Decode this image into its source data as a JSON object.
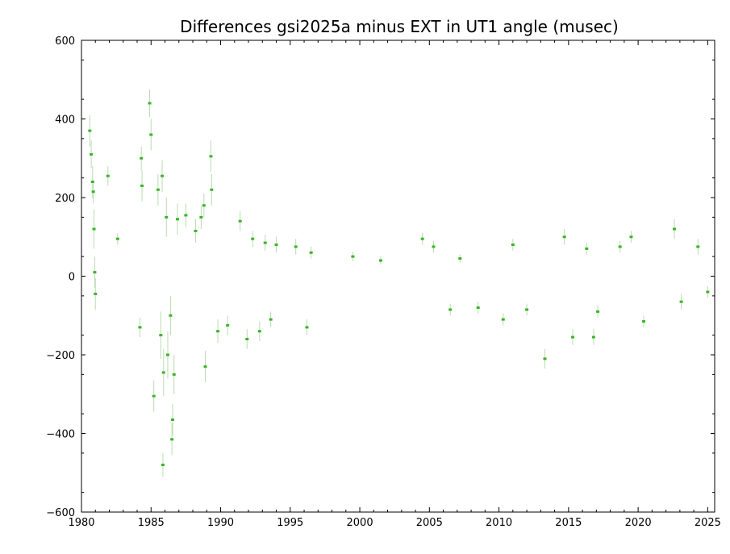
{
  "chart_data": {
    "type": "scatter",
    "title": "Differences gsi2025a minus EXT in UT1 angle    (musec)",
    "xlabel": "",
    "ylabel": "",
    "xlim": [
      1980,
      2025.5
    ],
    "ylim": [
      -600,
      600
    ],
    "x_ticks": [
      1980,
      1985,
      1990,
      1995,
      2000,
      2005,
      2010,
      2015,
      2020,
      2025
    ],
    "x_tick_labels": [
      "1980",
      "1985",
      "1990",
      "1995",
      "2000",
      "2005",
      "2010",
      "2015",
      "2020",
      "2025"
    ],
    "y_ticks": [
      -600,
      -400,
      -200,
      0,
      200,
      400,
      600
    ],
    "y_tick_labels": [
      "−600",
      "−400",
      "−200",
      "0",
      "200",
      "400",
      "600"
    ],
    "grid": false,
    "legend": "none",
    "series": [
      {
        "marker_color": "#3cb32a",
        "error_color": "#b9dcb1",
        "points": [
          {
            "x": 1980.6,
            "y": 370,
            "err": 40
          },
          {
            "x": 1980.7,
            "y": 310,
            "err": 35
          },
          {
            "x": 1980.8,
            "y": 240,
            "err": 40
          },
          {
            "x": 1980.85,
            "y": 215,
            "err": 30
          },
          {
            "x": 1980.9,
            "y": 120,
            "err": 50
          },
          {
            "x": 1980.95,
            "y": 10,
            "err": 40
          },
          {
            "x": 1981.0,
            "y": -45,
            "err": 40
          },
          {
            "x": 1981.9,
            "y": 255,
            "err": 25
          },
          {
            "x": 1982.6,
            "y": 95,
            "err": 15
          },
          {
            "x": 1984.2,
            "y": -130,
            "err": 25
          },
          {
            "x": 1984.3,
            "y": 300,
            "err": 30
          },
          {
            "x": 1984.35,
            "y": 230,
            "err": 40
          },
          {
            "x": 1984.9,
            "y": 440,
            "err": 35
          },
          {
            "x": 1985.0,
            "y": 360,
            "err": 40
          },
          {
            "x": 1985.2,
            "y": -305,
            "err": 40
          },
          {
            "x": 1985.5,
            "y": 220,
            "err": 40
          },
          {
            "x": 1985.7,
            "y": -150,
            "err": 60
          },
          {
            "x": 1985.8,
            "y": 255,
            "err": 40
          },
          {
            "x": 1985.85,
            "y": -480,
            "err": 30
          },
          {
            "x": 1985.9,
            "y": -245,
            "err": 60
          },
          {
            "x": 1986.1,
            "y": 150,
            "err": 50
          },
          {
            "x": 1986.2,
            "y": -200,
            "err": 60
          },
          {
            "x": 1986.4,
            "y": -100,
            "err": 50
          },
          {
            "x": 1986.5,
            "y": -415,
            "err": 40
          },
          {
            "x": 1986.55,
            "y": -365,
            "err": 40
          },
          {
            "x": 1986.65,
            "y": -250,
            "err": 50
          },
          {
            "x": 1986.9,
            "y": 145,
            "err": 40
          },
          {
            "x": 1987.5,
            "y": 155,
            "err": 30
          },
          {
            "x": 1988.2,
            "y": 115,
            "err": 30
          },
          {
            "x": 1988.6,
            "y": 150,
            "err": 30
          },
          {
            "x": 1988.8,
            "y": 180,
            "err": 30
          },
          {
            "x": 1988.9,
            "y": -230,
            "err": 40
          },
          {
            "x": 1989.3,
            "y": 305,
            "err": 40
          },
          {
            "x": 1989.35,
            "y": 220,
            "err": 40
          },
          {
            "x": 1989.8,
            "y": -140,
            "err": 30
          },
          {
            "x": 1990.5,
            "y": -125,
            "err": 25
          },
          {
            "x": 1991.4,
            "y": 140,
            "err": 25
          },
          {
            "x": 1991.9,
            "y": -160,
            "err": 25
          },
          {
            "x": 1992.3,
            "y": 95,
            "err": 20
          },
          {
            "x": 1992.8,
            "y": -140,
            "err": 25
          },
          {
            "x": 1993.2,
            "y": 85,
            "err": 20
          },
          {
            "x": 1993.6,
            "y": -110,
            "err": 20
          },
          {
            "x": 1994.0,
            "y": 80,
            "err": 20
          },
          {
            "x": 1995.4,
            "y": 75,
            "err": 20
          },
          {
            "x": 1996.2,
            "y": -130,
            "err": 20
          },
          {
            "x": 1996.5,
            "y": 60,
            "err": 15
          },
          {
            "x": 1999.5,
            "y": 50,
            "err": 12
          },
          {
            "x": 2001.5,
            "y": 40,
            "err": 10
          },
          {
            "x": 2004.5,
            "y": 95,
            "err": 15
          },
          {
            "x": 2005.3,
            "y": 75,
            "err": 15
          },
          {
            "x": 2006.5,
            "y": -85,
            "err": 15
          },
          {
            "x": 2007.2,
            "y": 45,
            "err": 10
          },
          {
            "x": 2008.5,
            "y": -80,
            "err": 15
          },
          {
            "x": 2010.3,
            "y": -110,
            "err": 15
          },
          {
            "x": 2011.0,
            "y": 80,
            "err": 15
          },
          {
            "x": 2012.0,
            "y": -85,
            "err": 15
          },
          {
            "x": 2013.3,
            "y": -210,
            "err": 25
          },
          {
            "x": 2014.7,
            "y": 100,
            "err": 20
          },
          {
            "x": 2015.3,
            "y": -155,
            "err": 20
          },
          {
            "x": 2016.3,
            "y": 70,
            "err": 15
          },
          {
            "x": 2016.8,
            "y": -155,
            "err": 20
          },
          {
            "x": 2017.1,
            "y": -90,
            "err": 15
          },
          {
            "x": 2018.7,
            "y": 75,
            "err": 15
          },
          {
            "x": 2019.5,
            "y": 100,
            "err": 15
          },
          {
            "x": 2020.4,
            "y": -115,
            "err": 15
          },
          {
            "x": 2022.6,
            "y": 120,
            "err": 25
          },
          {
            "x": 2023.1,
            "y": -65,
            "err": 20
          },
          {
            "x": 2024.3,
            "y": 75,
            "err": 20
          },
          {
            "x": 2025.0,
            "y": -40,
            "err": 15
          }
        ]
      }
    ]
  }
}
